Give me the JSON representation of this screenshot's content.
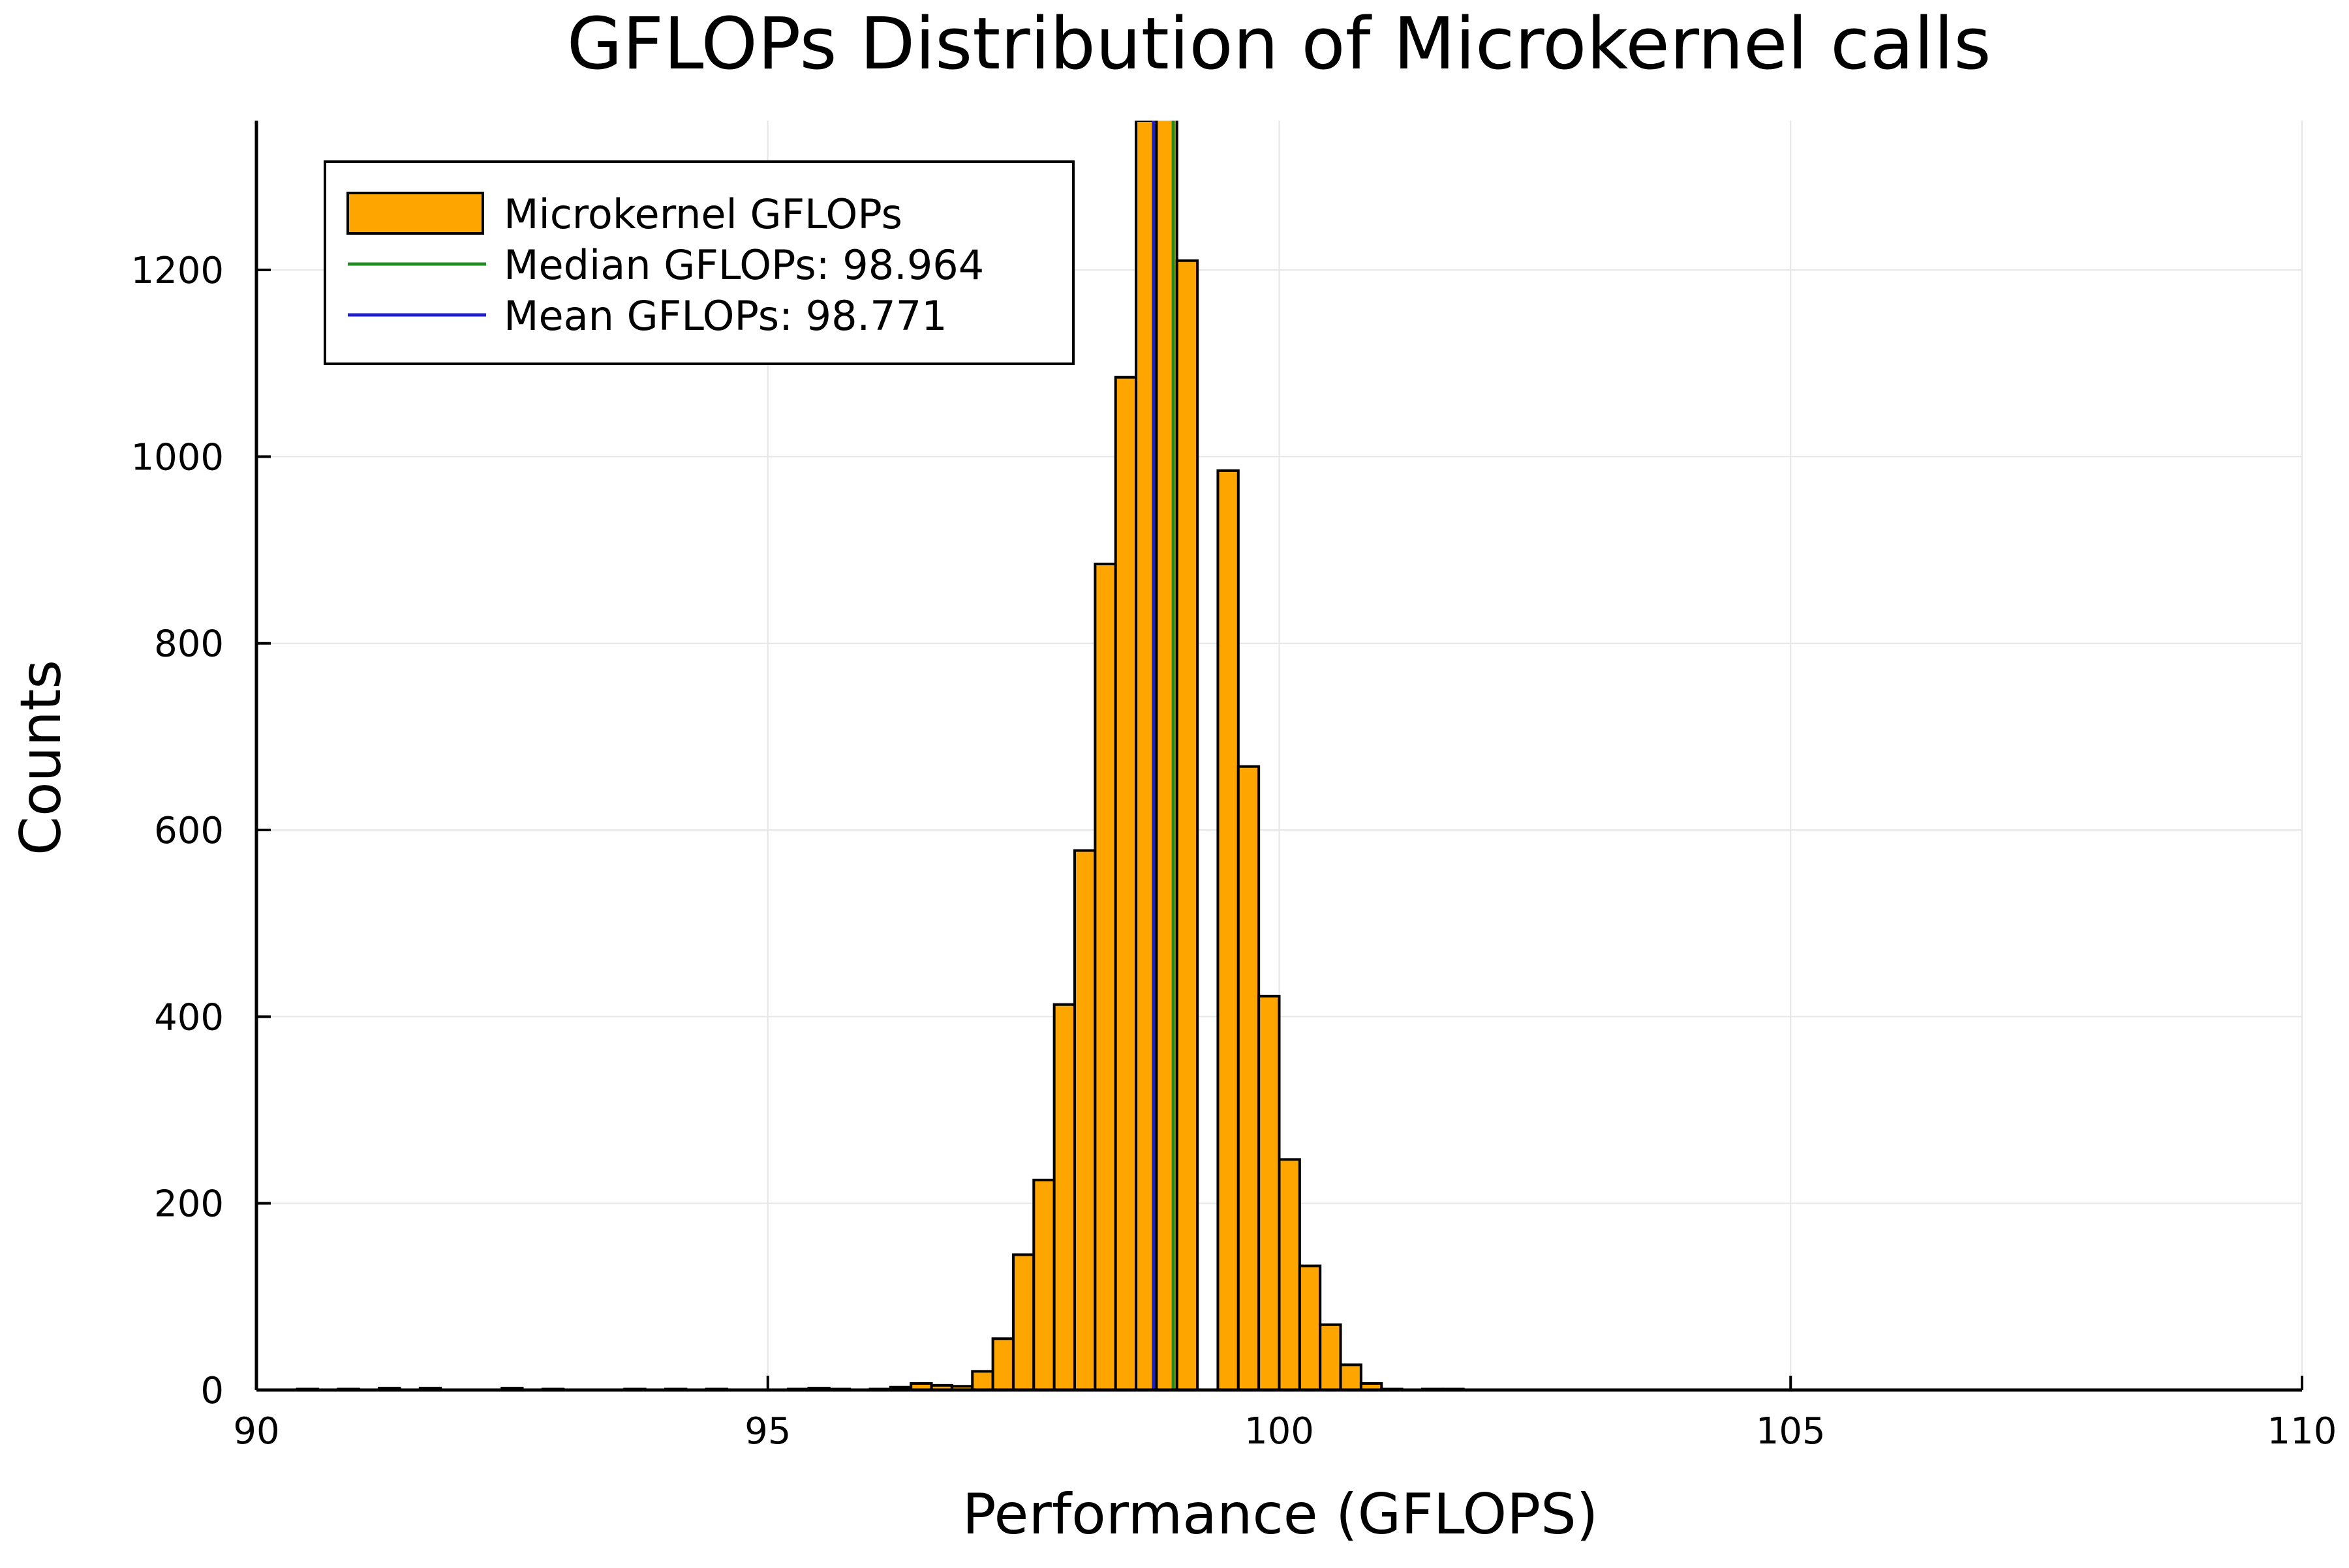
{
  "chart_data": {
    "type": "bar",
    "title": "GFLOPs Distribution of Microkernel calls",
    "xlabel": "Performance (GFLOPS)",
    "ylabel": "Counts",
    "xlim": [
      90,
      110
    ],
    "ylim": [
      0,
      1360
    ],
    "xticks": [
      90,
      95,
      100,
      105,
      110
    ],
    "yticks": [
      0,
      200,
      400,
      600,
      800,
      1000,
      1200
    ],
    "grid": true,
    "legend_position": "top-left",
    "colors": {
      "bar_fill": "#FFA500",
      "bar_edge": "#000000",
      "median_line": "#228B22",
      "mean_line": "#1E1EC8",
      "grid": "#E6E6E6"
    },
    "bin_width": 0.2,
    "series": [
      {
        "name": "Microkernel GFLOPs",
        "kind": "histogram",
        "bins": [
          {
            "x0": 90.4,
            "x1": 90.6,
            "count": 1
          },
          {
            "x0": 90.8,
            "x1": 91.0,
            "count": 1
          },
          {
            "x0": 91.2,
            "x1": 91.4,
            "count": 2
          },
          {
            "x0": 91.6,
            "x1": 91.8,
            "count": 2
          },
          {
            "x0": 92.4,
            "x1": 92.6,
            "count": 2
          },
          {
            "x0": 92.8,
            "x1": 93.0,
            "count": 1
          },
          {
            "x0": 93.6,
            "x1": 93.8,
            "count": 1
          },
          {
            "x0": 94.0,
            "x1": 94.2,
            "count": 1
          },
          {
            "x0": 94.4,
            "x1": 94.6,
            "count": 1
          },
          {
            "x0": 95.2,
            "x1": 95.4,
            "count": 1
          },
          {
            "x0": 95.4,
            "x1": 95.6,
            "count": 2
          },
          {
            "x0": 95.6,
            "x1": 95.8,
            "count": 1
          },
          {
            "x0": 96.0,
            "x1": 96.2,
            "count": 1
          },
          {
            "x0": 96.2,
            "x1": 96.4,
            "count": 3
          },
          {
            "x0": 96.4,
            "x1": 96.6,
            "count": 7
          },
          {
            "x0": 96.6,
            "x1": 96.8,
            "count": 5
          },
          {
            "x0": 96.8,
            "x1": 97.0,
            "count": 4
          },
          {
            "x0": 97.0,
            "x1": 97.2,
            "count": 20
          },
          {
            "x0": 97.2,
            "x1": 97.4,
            "count": 55
          },
          {
            "x0": 97.4,
            "x1": 97.6,
            "count": 145
          },
          {
            "x0": 97.6,
            "x1": 97.8,
            "count": 225
          },
          {
            "x0": 97.8,
            "x1": 98.0,
            "count": 413
          },
          {
            "x0": 98.0,
            "x1": 98.2,
            "count": 578
          },
          {
            "x0": 98.2,
            "x1": 98.4,
            "count": 885
          },
          {
            "x0": 98.4,
            "x1": 98.6,
            "count": 1085
          },
          {
            "x0": 98.6,
            "x1": 98.8,
            "count": 1360
          },
          {
            "x0": 98.8,
            "x1": 99.0,
            "count": 1400
          },
          {
            "x0": 99.0,
            "x1": 99.2,
            "count": 1210
          },
          {
            "x0": 99.4,
            "x1": 99.6,
            "count": 985
          },
          {
            "x0": 99.6,
            "x1": 99.8,
            "count": 668
          },
          {
            "x0": 99.8,
            "x1": 100.0,
            "count": 422
          },
          {
            "x0": 100.0,
            "x1": 100.2,
            "count": 247
          },
          {
            "x0": 100.2,
            "x1": 100.4,
            "count": 133
          },
          {
            "x0": 100.4,
            "x1": 100.6,
            "count": 70
          },
          {
            "x0": 100.6,
            "x1": 100.8,
            "count": 27
          },
          {
            "x0": 100.8,
            "x1": 101.0,
            "count": 7
          },
          {
            "x0": 101.0,
            "x1": 101.2,
            "count": 1
          },
          {
            "x0": 101.4,
            "x1": 101.6,
            "count": 1
          },
          {
            "x0": 101.6,
            "x1": 101.8,
            "count": 1
          }
        ]
      },
      {
        "name": "Median GFLOPs: 98.964",
        "kind": "vline",
        "x": 98.964
      },
      {
        "name": "Mean GFLOPs: 98.771",
        "kind": "vline",
        "x": 98.771
      }
    ]
  }
}
